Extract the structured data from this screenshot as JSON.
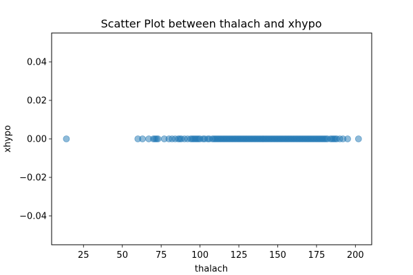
{
  "chart_data": {
    "type": "scatter",
    "title": "Scatter Plot between thalach and xhypo",
    "xlabel": "thalach",
    "ylabel": "xhypo",
    "xlim": [
      4.5,
      210.5
    ],
    "ylim": [
      -0.055,
      0.055
    ],
    "xticks": [
      25,
      50,
      75,
      100,
      125,
      150,
      175,
      200
    ],
    "xtick_labels": [
      "25",
      "50",
      "75",
      "100",
      "125",
      "150",
      "175",
      "200"
    ],
    "yticks": [
      -0.04,
      -0.02,
      0.0,
      0.02,
      0.04
    ],
    "ytick_labels": [
      "−0.04",
      "−0.02",
      "0.00",
      "0.02",
      "0.04"
    ],
    "grid": false,
    "marker_color": "#1f77b4",
    "marker_alpha": 0.5,
    "series": [
      {
        "x": [
          14,
          60,
          63,
          67,
          70,
          71,
          72,
          73,
          77,
          80,
          82,
          84,
          86,
          87,
          88,
          90,
          92,
          94,
          95,
          96,
          97,
          98,
          99,
          100,
          102,
          103,
          105,
          106,
          108,
          109,
          110,
          111,
          112,
          113,
          114,
          115,
          116,
          117,
          118,
          119,
          120,
          121,
          122,
          123,
          124,
          125,
          126,
          127,
          128,
          129,
          130,
          131,
          132,
          133,
          134,
          135,
          136,
          137,
          138,
          139,
          140,
          141,
          142,
          143,
          144,
          145,
          146,
          147,
          148,
          149,
          150,
          151,
          152,
          153,
          154,
          155,
          156,
          157,
          158,
          159,
          160,
          161,
          162,
          163,
          164,
          165,
          166,
          167,
          168,
          169,
          170,
          171,
          172,
          173,
          174,
          175,
          176,
          177,
          178,
          179,
          180,
          181,
          182,
          184,
          185,
          186,
          187,
          188,
          190,
          192,
          195,
          202
        ],
        "y": [
          0,
          0,
          0,
          0,
          0,
          0,
          0,
          0,
          0,
          0,
          0,
          0,
          0,
          0,
          0,
          0,
          0,
          0,
          0,
          0,
          0,
          0,
          0,
          0,
          0,
          0,
          0,
          0,
          0,
          0,
          0,
          0,
          0,
          0,
          0,
          0,
          0,
          0,
          0,
          0,
          0,
          0,
          0,
          0,
          0,
          0,
          0,
          0,
          0,
          0,
          0,
          0,
          0,
          0,
          0,
          0,
          0,
          0,
          0,
          0,
          0,
          0,
          0,
          0,
          0,
          0,
          0,
          0,
          0,
          0,
          0,
          0,
          0,
          0,
          0,
          0,
          0,
          0,
          0,
          0,
          0,
          0,
          0,
          0,
          0,
          0,
          0,
          0,
          0,
          0,
          0,
          0,
          0,
          0,
          0,
          0,
          0,
          0,
          0,
          0,
          0,
          0,
          0,
          0,
          0,
          0,
          0,
          0,
          0,
          0,
          0,
          0
        ]
      }
    ]
  }
}
